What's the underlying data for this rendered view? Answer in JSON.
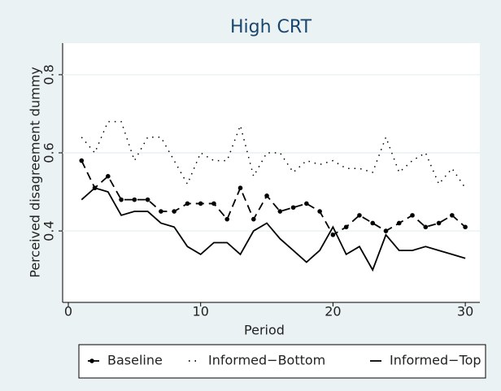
{
  "chart_data": {
    "type": "line",
    "title": "High CRT",
    "x_label": "Period",
    "y_label": "Perceived disagreement dummy",
    "x": [
      1,
      2,
      3,
      4,
      5,
      6,
      7,
      8,
      9,
      10,
      11,
      12,
      13,
      14,
      15,
      16,
      17,
      18,
      19,
      20,
      21,
      22,
      23,
      24,
      25,
      26,
      27,
      28,
      29,
      30
    ],
    "series": [
      {
        "name": "Baseline",
        "color": "#000000",
        "style": "dashed",
        "marker": "circle",
        "values": [
          0.58,
          0.51,
          0.54,
          0.48,
          0.48,
          0.48,
          0.45,
          0.45,
          0.47,
          0.47,
          0.47,
          0.43,
          0.51,
          0.43,
          0.49,
          0.45,
          0.46,
          0.47,
          0.45,
          0.39,
          0.41,
          0.44,
          0.42,
          0.4,
          0.42,
          0.44,
          0.41,
          0.42,
          0.44,
          0.41
        ]
      },
      {
        "name": "Informed−Bottom",
        "color": "#000000",
        "style": "dotted",
        "values": [
          0.64,
          0.6,
          0.68,
          0.68,
          0.58,
          0.64,
          0.64,
          0.58,
          0.52,
          0.6,
          0.58,
          0.58,
          0.67,
          0.54,
          0.6,
          0.6,
          0.55,
          0.58,
          0.57,
          0.58,
          0.56,
          0.56,
          0.55,
          0.64,
          0.55,
          0.58,
          0.6,
          0.52,
          0.56,
          0.51
        ]
      },
      {
        "name": "Informed−Top",
        "color": "#000000",
        "style": "solid",
        "values": [
          0.48,
          0.51,
          0.5,
          0.44,
          0.45,
          0.45,
          0.42,
          0.41,
          0.36,
          0.34,
          0.37,
          0.37,
          0.34,
          0.4,
          0.42,
          0.38,
          0.35,
          0.32,
          0.35,
          0.41,
          0.34,
          0.36,
          0.3,
          0.39,
          0.35,
          0.35,
          0.36,
          0.35,
          0.34,
          0.33
        ]
      }
    ],
    "xlim": [
      -0.43,
      31.1
    ],
    "xticks": [
      0,
      10,
      20,
      30
    ],
    "ylim": [
      0.217,
      0.881
    ],
    "yticks": [
      0.4,
      0.6,
      0.8
    ],
    "grid": true,
    "legend_position": "bottom"
  }
}
